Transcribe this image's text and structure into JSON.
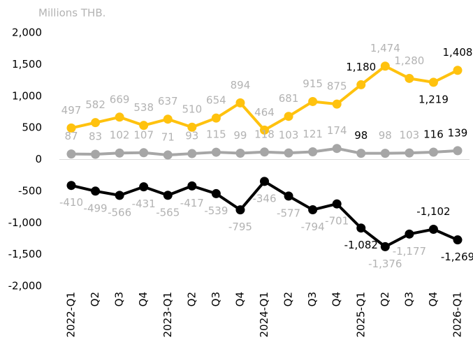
{
  "chart_data": {
    "type": "line",
    "y_label": "Millions THB.",
    "categories": [
      "2022-Q1",
      "Q2",
      "Q3",
      "Q4",
      "2023-Q1",
      "Q2",
      "Q3",
      "Q4",
      "2024-Q1",
      "Q2",
      "Q3",
      "Q4",
      "2025-Q1",
      "Q2",
      "Q3",
      "Q4",
      "2026-Q1"
    ],
    "series": [
      {
        "color": "#ffc20e",
        "values": [
          497,
          582,
          669,
          538,
          637,
          510,
          654,
          894,
          464,
          681,
          915,
          875,
          1180,
          1474,
          1280,
          1219,
          1408
        ],
        "value_labels": [
          "497",
          "582",
          "669",
          "538",
          "637",
          "510",
          "654",
          "894",
          "464",
          "681",
          "915",
          "875",
          "1,180",
          "1,474",
          "1,280",
          "1,219",
          "1,408"
        ]
      },
      {
        "color": "#a6a6a6",
        "values": [
          87,
          83,
          102,
          107,
          71,
          93,
          115,
          99,
          118,
          103,
          121,
          174,
          98,
          98,
          103,
          116,
          139
        ],
        "value_labels": [
          "87",
          "83",
          "102",
          "107",
          "71",
          "93",
          "115",
          "99",
          "118",
          "103",
          "121",
          "174",
          "98",
          "98",
          "103",
          "116",
          "139"
        ]
      },
      {
        "color": "#000000",
        "values": [
          -410,
          -499,
          -566,
          -431,
          -565,
          -417,
          -539,
          -795,
          -346,
          -577,
          -794,
          -701,
          -1082,
          -1376,
          -1177,
          -1102,
          -1269
        ],
        "value_labels": [
          "-410",
          "-499",
          "-566",
          "-431",
          "-565",
          "-417",
          "-539",
          "-795",
          "-346",
          "-577",
          "-794",
          "-701",
          "-1,082",
          "-1,376",
          "-1,177",
          "-1,102",
          "-1,269"
        ]
      }
    ],
    "ylim": [
      -2000,
      2000
    ],
    "yticks": [
      {
        "value": -2000,
        "label": "-2,000"
      },
      {
        "value": -1500,
        "label": "-1,500"
      },
      {
        "value": -1000,
        "label": "-1,000"
      },
      -500,
      0,
      500,
      {
        "value": 1000,
        "label": "1,000"
      },
      {
        "value": 1500,
        "label": "1,500"
      },
      {
        "value": 2000,
        "label": "2,000"
      }
    ]
  }
}
